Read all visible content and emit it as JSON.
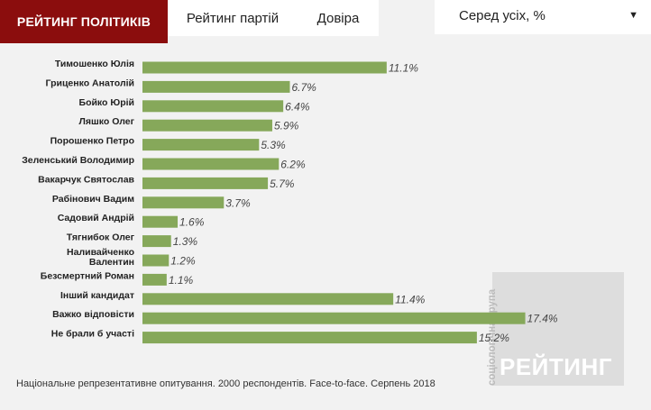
{
  "tabs": [
    {
      "label": "РЕЙТИНГ ПОЛІТИКІВ",
      "active": true
    },
    {
      "label": "Рейтинг партій",
      "active": false
    },
    {
      "label": "Довіра",
      "active": false
    }
  ],
  "filter": {
    "selected": "Серед усіх, %",
    "caret_icon": "chevron-down-icon"
  },
  "colors": {
    "bar": "#86a85a",
    "active_tab": "#8b0d0d",
    "background": "#f2f2f2"
  },
  "chart_data": {
    "type": "bar",
    "orientation": "horizontal",
    "categories": [
      "Тимошенко Юлія",
      "Гриценко Анатолій",
      "Бойко Юрій",
      "Ляшко Олег",
      "Порошенко Петро",
      "Зеленський Володимир",
      "Вакарчук Святослав",
      "Рабінович Вадим",
      "Садовий Андрій",
      "Тягнибок Олег",
      "Наливайченко Валентин",
      "Безсмертний Роман",
      "Інший кандидат",
      "Важко відповісти",
      "Не брали б участі"
    ],
    "category_lines": [
      [
        "Тимошенко Юлія"
      ],
      [
        "Гриценко Анатолій"
      ],
      [
        "Бойко Юрій"
      ],
      [
        "Ляшко Олег"
      ],
      [
        "Порошенко Петро"
      ],
      [
        "Зеленський Володимир"
      ],
      [
        "Вакарчук Святослав"
      ],
      [
        "Рабінович Вадим"
      ],
      [
        "Садовий Андрій"
      ],
      [
        "Тягнибок Олег"
      ],
      [
        "Наливайченко",
        "Валентин"
      ],
      [
        "Безсмертний Роман"
      ],
      [
        "Інший кандидат"
      ],
      [
        "Важко відповісти"
      ],
      [
        "Не брали б участі"
      ]
    ],
    "values": [
      11.1,
      6.7,
      6.4,
      5.9,
      5.3,
      6.2,
      5.7,
      3.7,
      1.6,
      1.3,
      1.2,
      1.1,
      11.4,
      17.4,
      15.2
    ],
    "value_labels": [
      "11.1%",
      "6.7%",
      "6.4%",
      "5.9%",
      "5.3%",
      "6.2%",
      "5.7%",
      "3.7%",
      "1.6%",
      "1.3%",
      "1.2%",
      "1.1%",
      "11.4%",
      "17.4%",
      "15.2%"
    ],
    "unit": "%",
    "grid": false,
    "axes_visible": false
  },
  "footnote": "Національне репрезентативне опитування. 2000 респондентів. Face-to-face. Серпень 2018",
  "watermark": {
    "main": "РЕЙТИНГ",
    "vertical": "соціологічна група"
  }
}
